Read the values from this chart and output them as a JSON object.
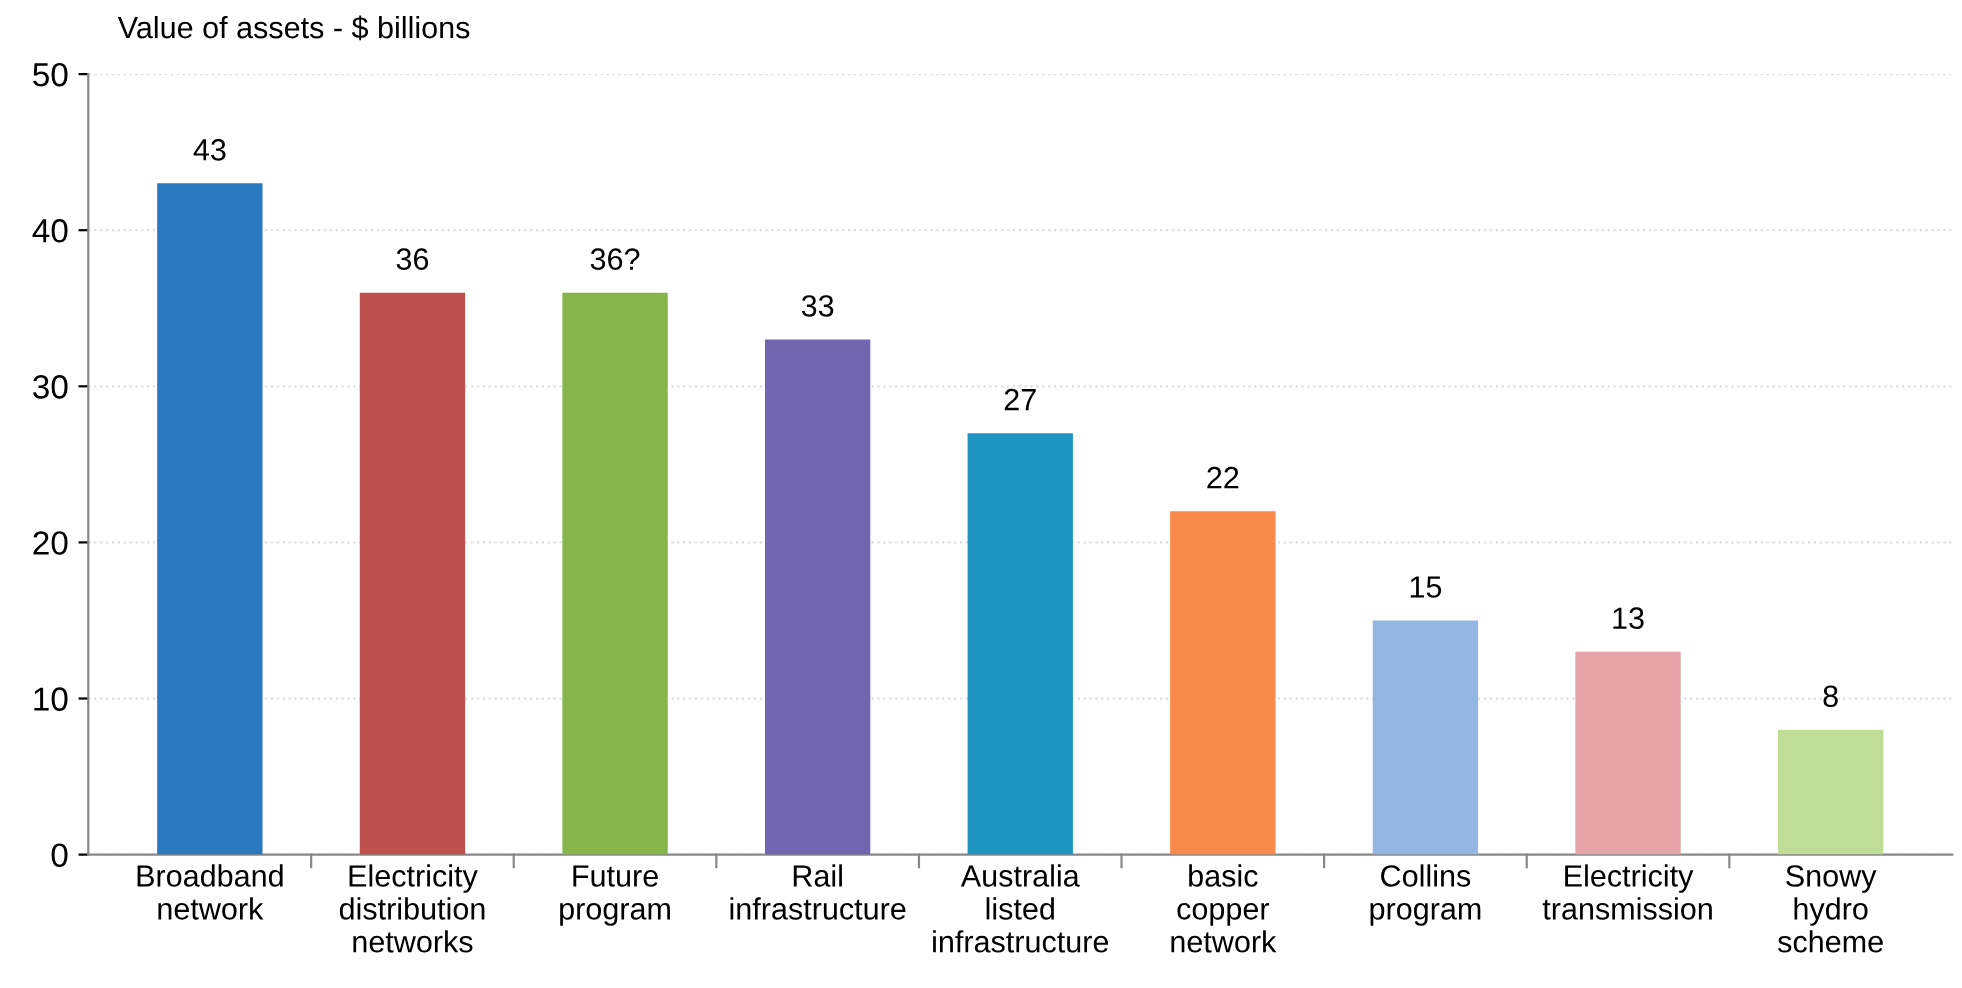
{
  "chart_data": {
    "type": "bar",
    "ylabel": "Value of assets - $ billions",
    "categories": [
      "Broadband\nnetwork",
      "Electricity\ndistribution\nnetworks",
      "Future\nprogram",
      "Rail\ninfrastructure",
      "Australia\nlisted\ninfrastructure",
      "basic\ncopper\nnetwork",
      "Collins\nprogram",
      "Electricity\ntransmission",
      "Snowy\nhydro\nscheme"
    ],
    "values": [
      43,
      36,
      36,
      33,
      27,
      22,
      15,
      13,
      8
    ],
    "value_labels": [
      "43",
      "36",
      "36?",
      "33",
      "27",
      "22",
      "15",
      "13",
      "8"
    ],
    "colors": [
      "#2a78c0",
      "#c0504d",
      "#86b64a",
      "#7266b0",
      "#1f96c2",
      "#f7894a",
      "#94b6e2",
      "#e6a3a8",
      "#c0dd98"
    ],
    "ylim": [
      0,
      50
    ],
    "yticks": [
      0,
      10,
      20,
      30,
      40,
      50
    ],
    "grid": "y"
  }
}
